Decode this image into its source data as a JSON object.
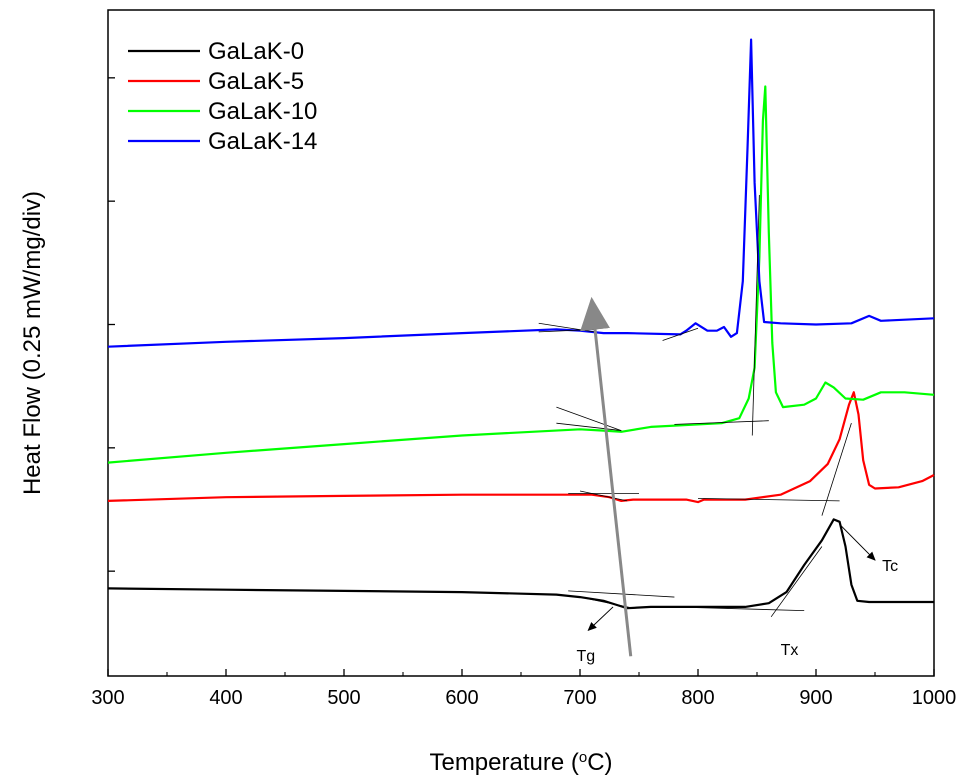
{
  "chart_data": {
    "type": "line",
    "xlabel_text": "Temperature (",
    "xlabel_sup": "o",
    "xlabel_end": "C)",
    "ylabel": "Heat Flow (0.25 mW/mg/div)",
    "xlim": [
      300,
      1000
    ],
    "xticks": [
      300,
      400,
      500,
      600,
      700,
      800,
      900,
      1000
    ],
    "y_unit": "div",
    "ylim": [
      0,
      5.4
    ],
    "yticks": [
      0.85,
      1.85,
      2.85,
      3.85,
      4.85
    ],
    "grid": false,
    "legend_position": "top-left",
    "series": [
      {
        "name": "GaLaK-0",
        "color": "#000000",
        "points": [
          [
            300,
            0.71
          ],
          [
            400,
            0.7
          ],
          [
            500,
            0.69
          ],
          [
            600,
            0.68
          ],
          [
            680,
            0.66
          ],
          [
            700,
            0.64
          ],
          [
            720,
            0.61
          ],
          [
            730,
            0.58
          ],
          [
            740,
            0.55
          ],
          [
            760,
            0.56
          ],
          [
            800,
            0.56
          ],
          [
            840,
            0.56
          ],
          [
            860,
            0.59
          ],
          [
            875,
            0.68
          ],
          [
            890,
            0.9
          ],
          [
            905,
            1.1
          ],
          [
            915,
            1.27
          ],
          [
            920,
            1.25
          ],
          [
            925,
            1.05
          ],
          [
            930,
            0.74
          ],
          [
            935,
            0.61
          ],
          [
            945,
            0.6
          ],
          [
            970,
            0.6
          ],
          [
            1000,
            0.6
          ]
        ]
      },
      {
        "name": "GaLaK-5",
        "color": "#ff0000",
        "points": [
          [
            300,
            1.42
          ],
          [
            400,
            1.45
          ],
          [
            500,
            1.46
          ],
          [
            600,
            1.47
          ],
          [
            680,
            1.47
          ],
          [
            710,
            1.47
          ],
          [
            725,
            1.45
          ],
          [
            735,
            1.42
          ],
          [
            745,
            1.43
          ],
          [
            790,
            1.43
          ],
          [
            800,
            1.41
          ],
          [
            805,
            1.43
          ],
          [
            840,
            1.43
          ],
          [
            870,
            1.47
          ],
          [
            895,
            1.58
          ],
          [
            910,
            1.72
          ],
          [
            920,
            1.92
          ],
          [
            928,
            2.2
          ],
          [
            932,
            2.3
          ],
          [
            936,
            2.12
          ],
          [
            940,
            1.75
          ],
          [
            945,
            1.55
          ],
          [
            950,
            1.52
          ],
          [
            970,
            1.53
          ],
          [
            990,
            1.58
          ],
          [
            1000,
            1.63
          ]
        ]
      },
      {
        "name": "GaLaK-10",
        "color": "#00ff00",
        "points": [
          [
            300,
            1.73
          ],
          [
            400,
            1.81
          ],
          [
            500,
            1.88
          ],
          [
            600,
            1.95
          ],
          [
            700,
            2.0
          ],
          [
            720,
            1.99
          ],
          [
            735,
            1.98
          ],
          [
            760,
            2.02
          ],
          [
            820,
            2.05
          ],
          [
            835,
            2.09
          ],
          [
            843,
            2.25
          ],
          [
            848,
            2.5
          ],
          [
            852,
            3.4
          ],
          [
            855,
            4.5
          ],
          [
            857,
            4.78
          ],
          [
            860,
            3.6
          ],
          [
            863,
            2.7
          ],
          [
            866,
            2.3
          ],
          [
            872,
            2.18
          ],
          [
            890,
            2.2
          ],
          [
            900,
            2.25
          ],
          [
            908,
            2.38
          ],
          [
            915,
            2.34
          ],
          [
            925,
            2.25
          ],
          [
            940,
            2.24
          ],
          [
            955,
            2.3
          ],
          [
            975,
            2.3
          ],
          [
            1000,
            2.28
          ]
        ]
      },
      {
        "name": "GaLaK-14",
        "color": "#0000ff",
        "points": [
          [
            300,
            2.67
          ],
          [
            400,
            2.71
          ],
          [
            500,
            2.74
          ],
          [
            600,
            2.78
          ],
          [
            680,
            2.81
          ],
          [
            700,
            2.8
          ],
          [
            720,
            2.78
          ],
          [
            740,
            2.78
          ],
          [
            785,
            2.77
          ],
          [
            790,
            2.8
          ],
          [
            798,
            2.86
          ],
          [
            808,
            2.8
          ],
          [
            816,
            2.8
          ],
          [
            822,
            2.83
          ],
          [
            828,
            2.75
          ],
          [
            833,
            2.78
          ],
          [
            838,
            3.2
          ],
          [
            842,
            4.3
          ],
          [
            845,
            5.16
          ],
          [
            848,
            4.0
          ],
          [
            852,
            3.2
          ],
          [
            856,
            2.87
          ],
          [
            870,
            2.86
          ],
          [
            900,
            2.85
          ],
          [
            930,
            2.86
          ],
          [
            945,
            2.92
          ],
          [
            955,
            2.88
          ],
          [
            1000,
            2.9
          ]
        ]
      }
    ],
    "annotations": [
      "Tg",
      "Tx",
      "Tc"
    ]
  }
}
